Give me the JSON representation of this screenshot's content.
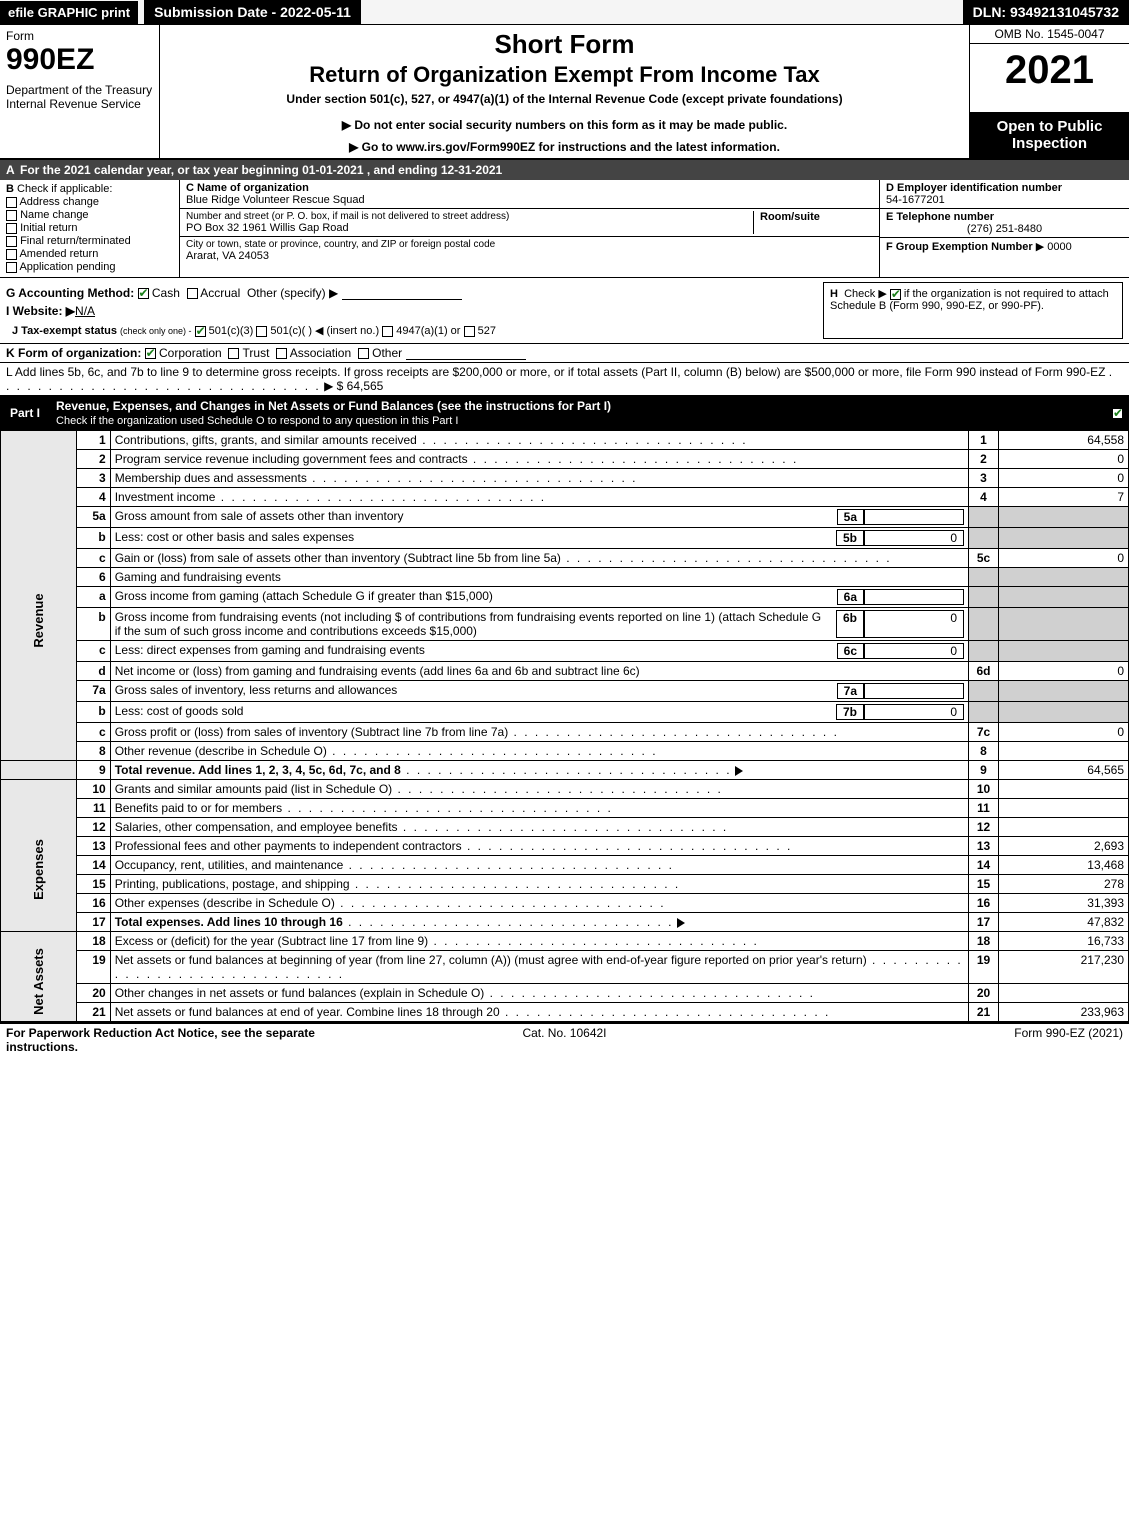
{
  "topbar": {
    "efile": "efile GRAPHIC print",
    "submission": "Submission Date - 2022-05-11",
    "dln": "DLN: 93492131045732"
  },
  "header": {
    "form_word": "Form",
    "form_num": "990EZ",
    "dept": "Department of the Treasury\nInternal Revenue Service",
    "short_form": "Short Form",
    "return_line": "Return of Organization Exempt From Income Tax",
    "sub_line": "Under section 501(c), 527, or 4947(a)(1) of the Internal Revenue Code (except private foundations)",
    "do_not": "▶ Do not enter social security numbers on this form as it may be made public.",
    "goto": "▶ Go to www.irs.gov/Form990EZ for instructions and the latest information.",
    "omb": "OMB No. 1545-0047",
    "year": "2021",
    "open_to": "Open to Public Inspection"
  },
  "a_line": "For the 2021 calendar year, or tax year beginning 01-01-2021 , and ending 12-31-2021",
  "b": {
    "header": "Check if applicable:",
    "addr_change": "Address change",
    "name_change": "Name change",
    "initial": "Initial return",
    "final": "Final return/terminated",
    "amended": "Amended return",
    "app_pending": "Application pending"
  },
  "c": {
    "name_lbl": "C Name of organization",
    "name": "Blue Ridge Volunteer Rescue Squad",
    "street_lbl": "Number and street (or P. O. box, if mail is not delivered to street address)",
    "room_lbl": "Room/suite",
    "street": "PO Box 32 1961 Willis Gap Road",
    "city_lbl": "City or town, state or province, country, and ZIP or foreign postal code",
    "city": "Ararat, VA  24053"
  },
  "d": {
    "lbl": "D Employer identification number",
    "val": "54-1677201"
  },
  "e": {
    "lbl": "E Telephone number",
    "val": "(276) 251-8480"
  },
  "f": {
    "lbl": "F Group Exemption Number",
    "val": "▶ 0000"
  },
  "g": {
    "lbl": "G Accounting Method:",
    "cash": "Cash",
    "accrual": "Accrual",
    "other": "Other (specify) ▶"
  },
  "h": {
    "text": "Check ▶",
    "text2": "if the organization is not required to attach Schedule B (Form 990, 990-EZ, or 990-PF)."
  },
  "i": {
    "lbl": "I Website: ▶",
    "val": "N/A"
  },
  "j": {
    "lbl": "J Tax-exempt status",
    "sub": "(check only one) -",
    "opt1": "501(c)(3)",
    "opt2": "501(c)(  ) ◀ (insert no.)",
    "opt3": "4947(a)(1) or",
    "opt4": "527"
  },
  "k": {
    "lbl": "K Form of organization:",
    "corp": "Corporation",
    "trust": "Trust",
    "assoc": "Association",
    "other": "Other"
  },
  "l": {
    "text": "L Add lines 5b, 6c, and 7b to line 9 to determine gross receipts. If gross receipts are $200,000 or more, or if total assets (Part II, column (B) below) are $500,000 or more, file Form 990 instead of Form 990-EZ",
    "arrow": "▶ $",
    "val": "64,565"
  },
  "part1": {
    "label": "Part I",
    "title": "Revenue, Expenses, and Changes in Net Assets or Fund Balances (see the instructions for Part I)",
    "sub": "Check if the organization used Schedule O to respond to any question in this Part I"
  },
  "side": {
    "rev": "Revenue",
    "exp": "Expenses",
    "net": "Net Assets"
  },
  "lines": {
    "l1": {
      "n": "1",
      "desc": "Contributions, gifts, grants, and similar amounts received",
      "rn": "1",
      "val": "64,558"
    },
    "l2": {
      "n": "2",
      "desc": "Program service revenue including government fees and contracts",
      "rn": "2",
      "val": "0"
    },
    "l3": {
      "n": "3",
      "desc": "Membership dues and assessments",
      "rn": "3",
      "val": "0"
    },
    "l4": {
      "n": "4",
      "desc": "Investment income",
      "rn": "4",
      "val": "7"
    },
    "l5a": {
      "n": "5a",
      "desc": "Gross amount from sale of assets other than inventory",
      "box": "5a",
      "bval": ""
    },
    "l5b": {
      "n": "b",
      "desc": "Less: cost or other basis and sales expenses",
      "box": "5b",
      "bval": "0"
    },
    "l5c": {
      "n": "c",
      "desc": "Gain or (loss) from sale of assets other than inventory (Subtract line 5b from line 5a)",
      "rn": "5c",
      "val": "0"
    },
    "l6": {
      "n": "6",
      "desc": "Gaming and fundraising events"
    },
    "l6a": {
      "n": "a",
      "desc": "Gross income from gaming (attach Schedule G if greater than $15,000)",
      "box": "6a",
      "bval": ""
    },
    "l6b": {
      "n": "b",
      "desc": "Gross income from fundraising events (not including $                 of contributions from fundraising events reported on line 1) (attach Schedule G if the sum of such gross income and contributions exceeds $15,000)",
      "box": "6b",
      "bval": "0"
    },
    "l6c": {
      "n": "c",
      "desc": "Less: direct expenses from gaming and fundraising events",
      "box": "6c",
      "bval": "0"
    },
    "l6d": {
      "n": "d",
      "desc": "Net income or (loss) from gaming and fundraising events (add lines 6a and 6b and subtract line 6c)",
      "rn": "6d",
      "val": "0"
    },
    "l7a": {
      "n": "7a",
      "desc": "Gross sales of inventory, less returns and allowances",
      "box": "7a",
      "bval": ""
    },
    "l7b": {
      "n": "b",
      "desc": "Less: cost of goods sold",
      "box": "7b",
      "bval": "0"
    },
    "l7c": {
      "n": "c",
      "desc": "Gross profit or (loss) from sales of inventory (Subtract line 7b from line 7a)",
      "rn": "7c",
      "val": "0"
    },
    "l8": {
      "n": "8",
      "desc": "Other revenue (describe in Schedule O)",
      "rn": "8",
      "val": ""
    },
    "l9": {
      "n": "9",
      "desc": "Total revenue. Add lines 1, 2, 3, 4, 5c, 6d, 7c, and 8",
      "rn": "9",
      "val": "64,565"
    },
    "l10": {
      "n": "10",
      "desc": "Grants and similar amounts paid (list in Schedule O)",
      "rn": "10",
      "val": ""
    },
    "l11": {
      "n": "11",
      "desc": "Benefits paid to or for members",
      "rn": "11",
      "val": ""
    },
    "l12": {
      "n": "12",
      "desc": "Salaries, other compensation, and employee benefits",
      "rn": "12",
      "val": ""
    },
    "l13": {
      "n": "13",
      "desc": "Professional fees and other payments to independent contractors",
      "rn": "13",
      "val": "2,693"
    },
    "l14": {
      "n": "14",
      "desc": "Occupancy, rent, utilities, and maintenance",
      "rn": "14",
      "val": "13,468"
    },
    "l15": {
      "n": "15",
      "desc": "Printing, publications, postage, and shipping",
      "rn": "15",
      "val": "278"
    },
    "l16": {
      "n": "16",
      "desc": "Other expenses (describe in Schedule O)",
      "rn": "16",
      "val": "31,393"
    },
    "l17": {
      "n": "17",
      "desc": "Total expenses. Add lines 10 through 16",
      "rn": "17",
      "val": "47,832"
    },
    "l18": {
      "n": "18",
      "desc": "Excess or (deficit) for the year (Subtract line 17 from line 9)",
      "rn": "18",
      "val": "16,733"
    },
    "l19": {
      "n": "19",
      "desc": "Net assets or fund balances at beginning of year (from line 27, column (A)) (must agree with end-of-year figure reported on prior year's return)",
      "rn": "19",
      "val": "217,230"
    },
    "l20": {
      "n": "20",
      "desc": "Other changes in net assets or fund balances (explain in Schedule O)",
      "rn": "20",
      "val": ""
    },
    "l21": {
      "n": "21",
      "desc": "Net assets or fund balances at end of year. Combine lines 18 through 20",
      "rn": "21",
      "val": "233,963"
    }
  },
  "footer": {
    "left": "For Paperwork Reduction Act Notice, see the separate instructions.",
    "center": "Cat. No. 10642I",
    "right": "Form 990-EZ (2021)"
  },
  "colors": {
    "black": "#000000",
    "white": "#ffffff",
    "shade": "#d0d0d0",
    "checkgreen": "#1a7f1a"
  }
}
